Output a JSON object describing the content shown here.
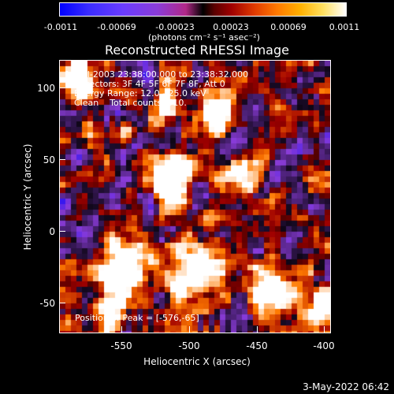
{
  "colorbar": {
    "ticks": [
      "-0.0011",
      "-0.00069",
      "-0.00023",
      "0.00023",
      "0.00069",
      "0.0011"
    ],
    "units": "(photons cm⁻² s⁻¹ asec⁻²)",
    "colors": [
      "#0000ff",
      "#8a3cd8",
      "#000000",
      "#a00000",
      "#ff7a00",
      "#ffffff"
    ]
  },
  "title": "Reconstructed RHESSI Image",
  "info": {
    "line1": "14-Jul-2003 23:38:00.000 to 23:38:32.000",
    "line2": "Detectors: 3F 4F 5F 6F 7F 8F, Att 0",
    "line3": "Energy Range: 12.0 - 25.0 keV",
    "line4": "Clean    Total counts: 510.",
    "peak": "Position of Peak = [-576,-65]"
  },
  "axes": {
    "xlabel": "Heliocentric X (arcsec)",
    "ylabel": "Heliocentric Y (arcsec)",
    "xticks": [
      "-550",
      "-500",
      "-450",
      "-400"
    ],
    "yticks": [
      "100",
      "50",
      "0",
      "-50"
    ],
    "xrange": [
      -591,
      -396
    ],
    "yrange": [
      -72,
      122
    ]
  },
  "timestamp": "3-May-2022 06:42"
}
